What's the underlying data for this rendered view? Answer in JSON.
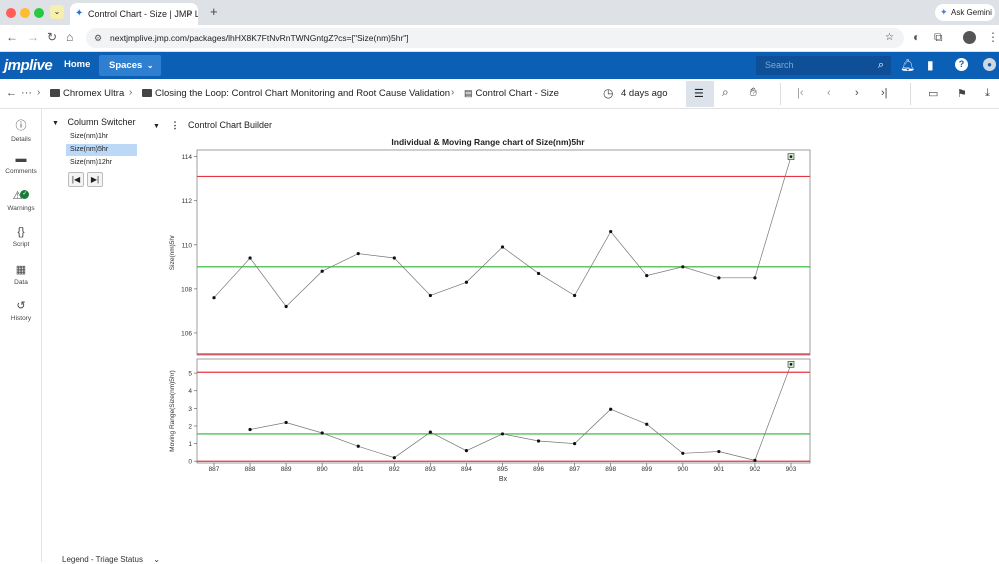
{
  "browser": {
    "tab_title": "Control Chart - Size | JMP Li",
    "tab_close": "×",
    "new_tab": "+",
    "url": "nextjmplive.jmp.com/packages/lhHX8K7FtNvRnTWNGntgZ?cs=[\"Size(nm)5hr\"]",
    "ask_gemini": "Ask Gemini"
  },
  "header": {
    "logo": "jmplive",
    "home": "Home",
    "spaces": "Spaces",
    "search_placeholder": "Search"
  },
  "breadcrumb": {
    "items": [
      "Chromex Ultra",
      "Closing the Loop: Control Chart Monitoring and Root Cause Validation",
      "Control Chart - Size"
    ],
    "age": "4 days ago"
  },
  "rail": {
    "items": [
      {
        "label": "Details",
        "icon": "info-icon"
      },
      {
        "label": "Comments",
        "icon": "comment-icon"
      },
      {
        "label": "Warnings",
        "icon": "warning-icon"
      },
      {
        "label": "Script",
        "icon": "braces-icon"
      },
      {
        "label": "Data",
        "icon": "table-icon"
      },
      {
        "label": "History",
        "icon": "history-icon"
      }
    ]
  },
  "column_switcher": {
    "title": "Column Switcher",
    "items": [
      "Size(nm)1hr",
      "Size(nm)5hr",
      "Size(nm)12hr"
    ],
    "selected": "Size(nm)5hr"
  },
  "builder": {
    "title": "Control Chart Builder"
  },
  "legend_bar": {
    "label": "Legend - Triage Status"
  },
  "colors": {
    "brand_blue": "#0b5fb5",
    "limit_red": "#e8343f",
    "center_green": "#2db52d",
    "selection": "#bcd8f7"
  },
  "chart_data": {
    "type": "line",
    "title": "Individual & Moving Range chart of Size(nm)5hr",
    "xlabel": "Bx",
    "x": [
      "887",
      "888",
      "889",
      "890",
      "891",
      "892",
      "893",
      "894",
      "895",
      "896",
      "897",
      "898",
      "899",
      "900",
      "901",
      "902",
      "903"
    ],
    "individuals": {
      "ylabel": "Size(nm)5hr",
      "values": [
        107.6,
        109.4,
        107.2,
        108.8,
        109.6,
        109.4,
        107.7,
        108.3,
        109.9,
        108.7,
        107.7,
        110.6,
        108.6,
        109.0,
        108.5,
        108.5,
        114.0
      ],
      "ylim": [
        105,
        114.3
      ],
      "yticks": [
        106,
        108,
        110,
        112,
        114
      ],
      "ucl": 113.1,
      "center": 109.0,
      "lcl": 104.9
    },
    "moving_range": {
      "ylabel": "Moving Range(Size(nm)5hr)",
      "values": [
        null,
        1.8,
        2.2,
        1.6,
        0.85,
        0.2,
        1.65,
        0.6,
        1.55,
        1.15,
        1.0,
        2.95,
        2.1,
        0.45,
        0.55,
        0.05,
        5.5
      ],
      "ylim": [
        -0.1,
        5.8
      ],
      "yticks": [
        0,
        1,
        2,
        3,
        4,
        5
      ],
      "ucl": 5.05,
      "center": 1.55,
      "lcl": 0
    }
  }
}
